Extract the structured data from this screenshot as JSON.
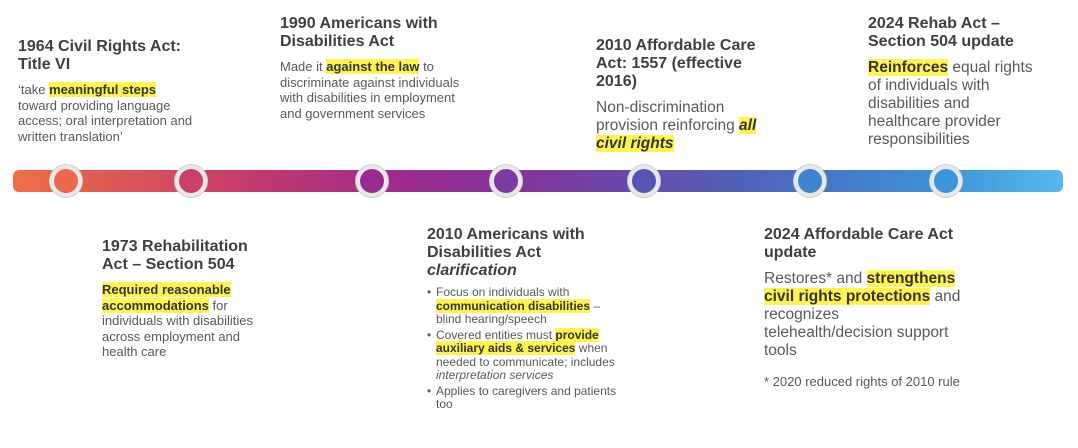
{
  "events": {
    "e1964": {
      "title": "1964 Civil Rights Act: Title VI",
      "text_pre": "‘take ",
      "highlight": "meaningful steps",
      "text_post": " toward providing language access; oral interpretation and written translation’"
    },
    "e1973": {
      "title": "1973 Rehabilitation Act – Section 504",
      "highlight": "Required reasonable accommodations",
      "text_post": " for individuals with disabilities across employment and health care"
    },
    "e1990": {
      "title": "1990 Americans with Disabilities Act",
      "text_pre": "Made it ",
      "highlight": "against the law",
      "text_post": " to discriminate against individuals with disabilities in employment and government services"
    },
    "e2010ada": {
      "title": "2010 Americans with Disabilities Act",
      "title_italic": "clarification",
      "b1_pre": "Focus on individuals with ",
      "b1_hl": "communication disabilities",
      "b1_post": " – blind hearing/speech",
      "b2_pre": "Covered entities must ",
      "b2_hl": "provide auxiliary aids & services",
      "b2_post": " when needed to communicate; includes ",
      "b2_italic": "interpretation services",
      "b3": "Applies to caregivers and patients too"
    },
    "e2010aca": {
      "title": "2010 Affordable Care Act: 1557 (effective 2016)",
      "text_pre": "Non-discrimination provision reinforcing ",
      "highlight": "all civil rights"
    },
    "e2024aca": {
      "title": "2024 Affordable Care Act update",
      "text_pre": "Restores* and ",
      "highlight": "strengthens civil rights protections",
      "text_post": " and recognizes telehealth/decision support tools",
      "footnote": "* 2020 reduced rights of 2010 rule"
    },
    "e2024rehab": {
      "title": "2024 Rehab Act – Section 504 update",
      "highlight": "Reinforces",
      "text_post": " equal rights of individuals with disabilities and healthcare provider responsibilities"
    }
  },
  "colors": {
    "highlight": "#fff44f",
    "bar_start": "#ee7044",
    "bar_end": "#56b8ee"
  }
}
